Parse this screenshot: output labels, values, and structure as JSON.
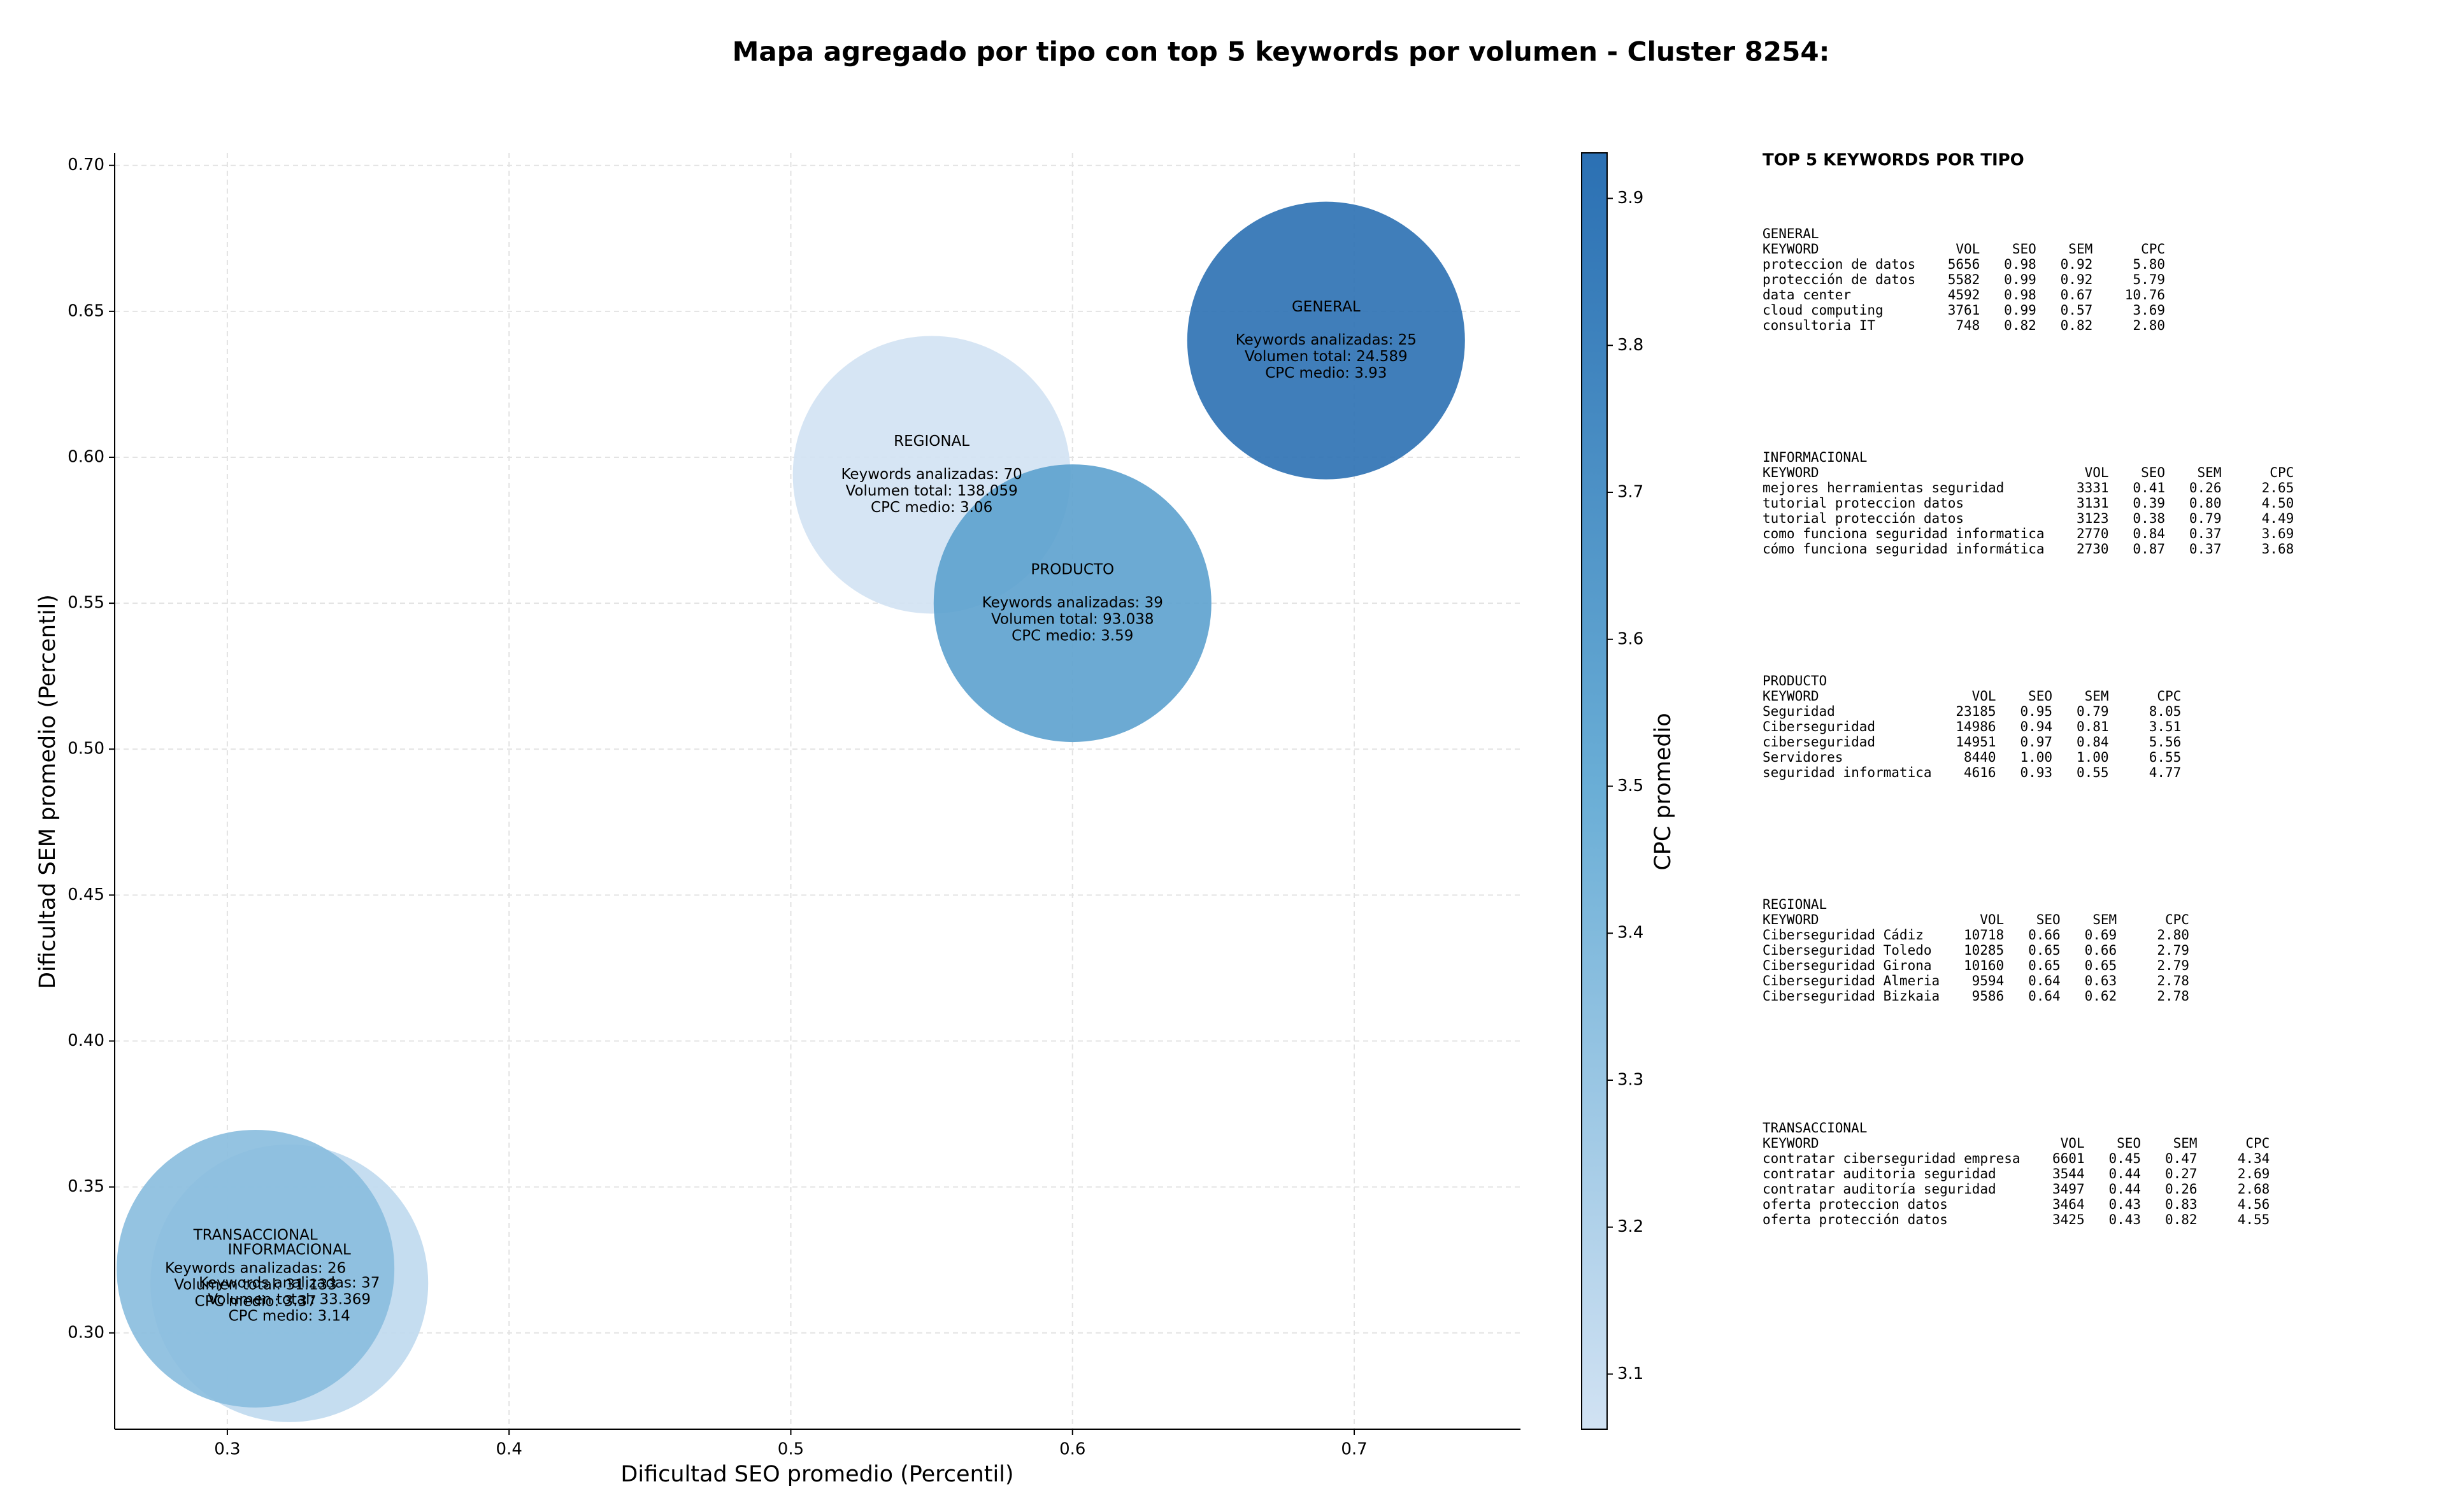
{
  "chart_data": {
    "type": "bubble",
    "title": "Mapa agregado por tipo con top 5 keywords por volumen - Cluster 8254:",
    "xlabel": "Dificultad SEO promedio (Percentil)",
    "ylabel": "Dificultad SEM promedio (Percentil)",
    "xlim": [
      0.26,
      0.759
    ],
    "ylim": [
      0.267,
      0.7043
    ],
    "xticks": [
      0.3,
      0.4,
      0.5,
      0.6,
      0.7
    ],
    "yticks": [
      {
        "value": 0.3,
        "label": "0.30"
      },
      0.35,
      {
        "value": 0.4,
        "label": "0.40"
      },
      0.45,
      {
        "value": 0.5,
        "label": "0.50"
      },
      0.55,
      {
        "value": 0.6,
        "label": "0.60"
      },
      0.65,
      {
        "value": 0.7,
        "label": "0.70"
      }
    ],
    "grid": true,
    "colorbar": {
      "label": "CPC promedio",
      "lim": [
        3.0625,
        3.931
      ],
      "ticks": [
        3.1,
        3.2,
        3.3,
        3.4,
        3.5,
        3.6,
        3.7,
        3.8,
        3.9
      ],
      "cmap": [
        "#d1e2f3",
        "#6aaed6",
        "#2b70b3"
      ]
    },
    "points": [
      {
        "name": "GENERAL",
        "x": 0.69,
        "y": 0.64,
        "cpc": 3.93,
        "annotation": [
          "Keywords analizadas: 25",
          "Volumen total: 24.589",
          "CPC medio: 3.93"
        ]
      },
      {
        "name": "REGIONAL",
        "x": 0.55,
        "y": 0.594,
        "cpc": 3.06,
        "annotation": [
          "Keywords analizadas: 70",
          "Volumen total: 138.059",
          "CPC medio: 3.06"
        ]
      },
      {
        "name": "PRODUCTO",
        "x": 0.6,
        "y": 0.55,
        "cpc": 3.59,
        "annotation": [
          "Keywords analizadas: 39",
          "Volumen total: 93.038",
          "CPC medio: 3.59"
        ]
      },
      {
        "name": "INFORMACIONAL",
        "x": 0.322,
        "y": 0.317,
        "cpc": 3.14,
        "annotation": [
          "Keywords analizadas: 37",
          "Volumen total: 33.369",
          "CPC medio: 3.14"
        ]
      },
      {
        "name": "TRANSACCIONAL",
        "x": 0.31,
        "y": 0.322,
        "cpc": 3.37,
        "annotation": [
          "Keywords analizadas: 26",
          "Volumen total: 31.133",
          "CPC medio: 3.37"
        ]
      }
    ]
  },
  "panel": {
    "title": "TOP 5 KEYWORDS POR TIPO",
    "header": [
      "KEYWORD",
      "VOL",
      "SEO",
      "SEM",
      "CPC"
    ],
    "groups": [
      {
        "name": "GENERAL",
        "rows": [
          [
            "proteccion de datos",
            "5656",
            "0.98",
            "0.92",
            "5.80"
          ],
          [
            "protección de datos",
            "5582",
            "0.99",
            "0.92",
            "5.79"
          ],
          [
            "data center",
            "4592",
            "0.98",
            "0.67",
            "10.76"
          ],
          [
            "cloud computing",
            "3761",
            "0.99",
            "0.57",
            "3.69"
          ],
          [
            "consultoria IT",
            "748",
            "0.82",
            "0.82",
            "2.80"
          ]
        ]
      },
      {
        "name": "INFORMACIONAL",
        "rows": [
          [
            "mejores herramientas seguridad",
            "3331",
            "0.41",
            "0.26",
            "2.65"
          ],
          [
            "tutorial proteccion datos",
            "3131",
            "0.39",
            "0.80",
            "4.50"
          ],
          [
            "tutorial protección datos",
            "3123",
            "0.38",
            "0.79",
            "4.49"
          ],
          [
            "como funciona seguridad informatica",
            "2770",
            "0.84",
            "0.37",
            "3.69"
          ],
          [
            "cómo funciona seguridad informática",
            "2730",
            "0.87",
            "0.37",
            "3.68"
          ]
        ]
      },
      {
        "name": "PRODUCTO",
        "rows": [
          [
            "Seguridad",
            "23185",
            "0.95",
            "0.79",
            "8.05"
          ],
          [
            "Ciberseguridad",
            "14986",
            "0.94",
            "0.81",
            "3.51"
          ],
          [
            "ciberseguridad",
            "14951",
            "0.97",
            "0.84",
            "5.56"
          ],
          [
            "Servidores",
            "8440",
            "1.00",
            "1.00",
            "6.55"
          ],
          [
            "seguridad informatica",
            "4616",
            "0.93",
            "0.55",
            "4.77"
          ]
        ]
      },
      {
        "name": "REGIONAL",
        "rows": [
          [
            "Ciberseguridad Cádiz",
            "10718",
            "0.66",
            "0.69",
            "2.80"
          ],
          [
            "Ciberseguridad Toledo",
            "10285",
            "0.65",
            "0.66",
            "2.79"
          ],
          [
            "Ciberseguridad Girona",
            "10160",
            "0.65",
            "0.65",
            "2.79"
          ],
          [
            "Ciberseguridad Almeria",
            "9594",
            "0.64",
            "0.63",
            "2.78"
          ],
          [
            "Ciberseguridad Bizkaia",
            "9586",
            "0.64",
            "0.62",
            "2.78"
          ]
        ]
      },
      {
        "name": "TRANSACCIONAL",
        "rows": [
          [
            "contratar ciberseguridad empresa",
            "6601",
            "0.45",
            "0.47",
            "4.34"
          ],
          [
            "contratar auditoria seguridad",
            "3544",
            "0.44",
            "0.27",
            "2.69"
          ],
          [
            "contratar auditoría seguridad",
            "3497",
            "0.44",
            "0.26",
            "2.68"
          ],
          [
            "oferta proteccion datos",
            "3464",
            "0.43",
            "0.83",
            "4.56"
          ],
          [
            "oferta protección datos",
            "3425",
            "0.43",
            "0.82",
            "4.55"
          ]
        ]
      }
    ]
  }
}
